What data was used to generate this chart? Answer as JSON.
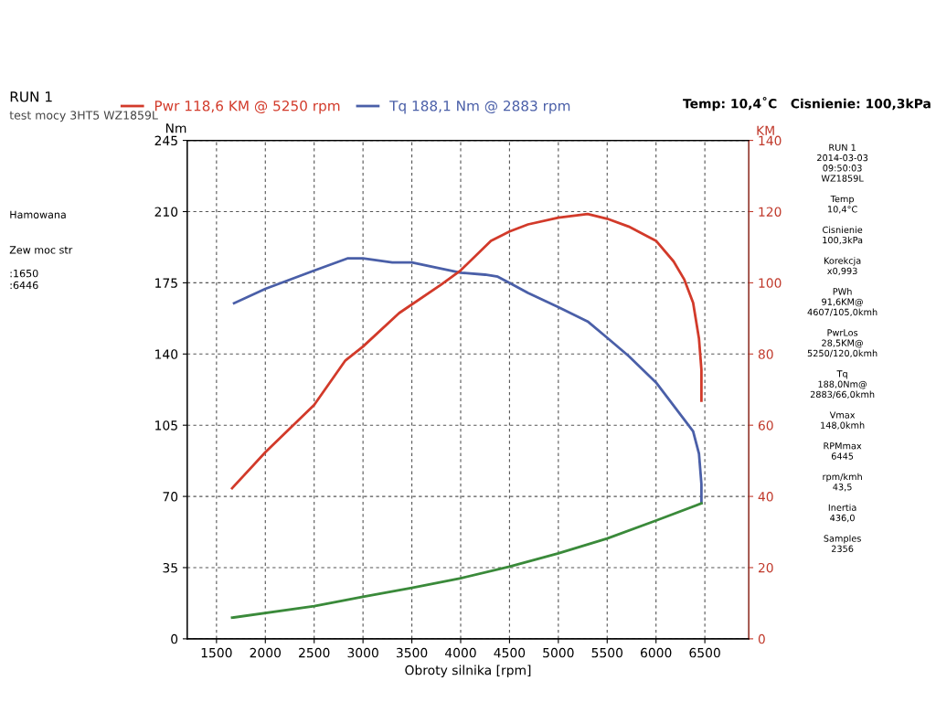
{
  "chart_data": {
    "type": "line",
    "title": "RUN 1",
    "subtitle": "test mocy 3HT5 WZ1859L",
    "xlabel": "Obroty silnika [rpm]",
    "ylabel": "Nm",
    "y2label": "KM",
    "xlim": [
      1200,
      6950
    ],
    "xticks": [
      1500,
      2000,
      2500,
      3000,
      3500,
      4000,
      4500,
      5000,
      5500,
      6000,
      6500
    ],
    "ylim": [
      0,
      245
    ],
    "yticks": [
      0,
      35,
      70,
      105,
      140,
      175,
      210,
      245
    ],
    "y2lim": [
      0,
      140
    ],
    "y2ticks": [
      0,
      20,
      40,
      60,
      80,
      100,
      120,
      140
    ],
    "grid": true,
    "legend": "top",
    "line_style": "solid",
    "marker": "none",
    "series": [
      {
        "name": "Pwr 118,6 KM @ 5250 rpm",
        "color": "#d23a2a",
        "axis": "y2",
        "x": [
          1660,
          2000,
          2500,
          2820,
          3000,
          3370,
          3800,
          4000,
          4310,
          4500,
          4690,
          5000,
          5300,
          5500,
          5720,
          6000,
          6180,
          6290,
          6380,
          6440,
          6465,
          6465
        ],
        "values": [
          42.3,
          52.4,
          65.7,
          78.2,
          82.1,
          91.5,
          99.5,
          103.5,
          111.8,
          114.4,
          116.4,
          118.3,
          119.3,
          118.0,
          115.8,
          111.8,
          106.0,
          100.9,
          94.4,
          84.3,
          75.6,
          66.9
        ]
      },
      {
        "name": "Tq 188,1 Nm @ 2883 rpm",
        "color": "#4a5fa8",
        "x": [
          1680,
          2000,
          2500,
          2840,
          3000,
          3300,
          3500,
          4000,
          4250,
          4380,
          4500,
          4690,
          5000,
          5300,
          5500,
          5720,
          6000,
          6270,
          6380,
          6440,
          6465,
          6465
        ],
        "values": [
          165,
          172,
          181,
          187,
          187,
          185,
          185,
          180,
          179,
          178,
          175,
          170,
          163,
          156,
          148,
          139,
          126,
          109,
          102,
          91,
          76,
          67
        ]
      },
      {
        "color": "#3a8a3a",
        "x": [
          1660,
          2500,
          3000,
          3500,
          4000,
          4500,
          5000,
          5500,
          6000,
          6465
        ],
        "values": [
          10.4,
          16.1,
          20.7,
          25.1,
          29.8,
          35.5,
          42.0,
          49.3,
          58.1,
          66.6
        ]
      }
    ],
    "annotations": [
      "Temp: 10,4˚C   Cisnienie: 100,3kPa",
      "RUN 1\n2014-03-03\n09:50:03\nWZ1859L\n\nTemp\n10,4°C\n\nCisnienie\n100,3kPa\n\nKorekcja\nx0,993\n\nPWh\n91,6KM@\n4607/105,0kmh\n\nPwrLos\n28,5KM@\n5250/120,0kmh\n\nTq\n188,0Nm@\n2883/66,0kmh\n\nVmax\n148,0kmh\n\nRPMmax\n6445\n\nrpm/kmh\n43,5\n\nInertia\n436,0\n\nSamples\n2356",
      "Hamowana\n\n\nZew moc str\n\n:1650\n:6446"
    ]
  }
}
